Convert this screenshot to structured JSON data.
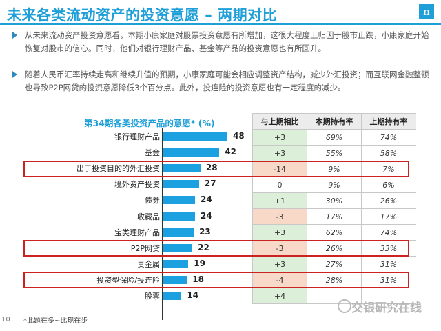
{
  "header": {
    "title": "未来各类流动资产的投资意愿 – 两期对比",
    "logo_text": "n"
  },
  "bullets": [
    "从未来流动资产投资意愿看，本期小康家庭对股票投资意愿有所增加，这很大程度上归因于股市止跌，小康家庭开始恢复对股市的信心。同时，他们对银行理财产品、基金等产品的投资意愿也有所回升。",
    "随着人民币汇率持续走高和继续升值的预期，小康家庭可能会相应调整资产结构，减少外汇投资；而互联网金融整顿也导致P2P网贷的投资意愿降低3个百分点。此外，投连险的投资意愿也有一定程度的减少。"
  ],
  "chart_data": {
    "type": "bar",
    "title": "第34期各类投资产品的意愿* (%)",
    "categories": [
      "银行理财产品",
      "基金",
      "出于投资目的的外汇投资",
      "境外资产投资",
      "债券",
      "收藏品",
      "宝类理财产品",
      "P2P网贷",
      "贵金属",
      "投资型保险/投连险",
      "股票"
    ],
    "values": [
      48,
      42,
      28,
      27,
      24,
      24,
      23,
      22,
      19,
      18,
      14
    ],
    "xlim": [
      0,
      50
    ],
    "highlighted": [
      "出于投资目的的外汇投资",
      "P2P网贷",
      "投资型保险/投连险"
    ]
  },
  "table": {
    "headers": [
      "与上期相比",
      "本期持有率",
      "上期持有率"
    ],
    "rows": [
      {
        "change": "+3",
        "current": "69%",
        "previous": "74%",
        "trend": "up"
      },
      {
        "change": "+3",
        "current": "55%",
        "previous": "58%",
        "trend": "up"
      },
      {
        "change": "-14",
        "current": "9%",
        "previous": "7%",
        "trend": "down"
      },
      {
        "change": "0",
        "current": "9%",
        "previous": "6%",
        "trend": "zero"
      },
      {
        "change": "+1",
        "current": "30%",
        "previous": "26%",
        "trend": "up"
      },
      {
        "change": "-3",
        "current": "17%",
        "previous": "17%",
        "trend": "down"
      },
      {
        "change": "+3",
        "current": "62%",
        "previous": "74%",
        "trend": "up"
      },
      {
        "change": "-3",
        "current": "26%",
        "previous": "33%",
        "trend": "down"
      },
      {
        "change": "+3",
        "current": "27%",
        "previous": "31%",
        "trend": "up"
      },
      {
        "change": "-4",
        "current": "28%",
        "previous": "31%",
        "trend": "down"
      },
      {
        "change": "+4",
        "current": "",
        "previous": "",
        "trend": "up"
      }
    ]
  },
  "footnote": "*此题在多~比现在步",
  "watermark": "交银研究在线",
  "page_number": "10",
  "colors": {
    "accent": "#1f9fd8",
    "bar": "#1ba0e0",
    "up": "#dcefd8",
    "down": "#f8d9c7",
    "highlight": "#cc2222"
  }
}
